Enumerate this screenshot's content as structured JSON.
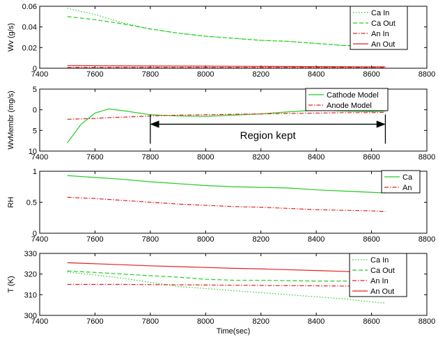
{
  "chart_data": [
    {
      "type": "line",
      "ylabel": "Wv (g/s)",
      "x": [
        7500,
        7600,
        7700,
        7800,
        7900,
        8000,
        8100,
        8200,
        8300,
        8400,
        8500,
        8600,
        8650
      ],
      "xlim": [
        7400,
        8800
      ],
      "xticks": [
        7400,
        7600,
        7800,
        8000,
        8200,
        8400,
        8600,
        8800
      ],
      "ylim": [
        0,
        0.06
      ],
      "yticks": [
        0,
        0.02,
        0.04,
        0.06
      ],
      "series": [
        {
          "name": "Ca In",
          "color": "#22cc22",
          "dash": "dotted",
          "values": [
            0.058,
            0.052,
            0.044,
            0.038,
            0.034,
            0.031,
            0.029,
            0.027,
            0.026,
            0.024,
            0.022,
            0.021,
            0.02
          ]
        },
        {
          "name": "Ca Out",
          "color": "#22cc22",
          "dash": "dashed",
          "values": [
            0.05,
            0.047,
            0.043,
            0.038,
            0.034,
            0.031,
            0.029,
            0.027,
            0.026,
            0.024,
            0.022,
            0.021,
            0.02
          ]
        },
        {
          "name": "An In",
          "color": "#e02020",
          "dash": "dashdot",
          "values": [
            0.0008,
            0.0008,
            0.0008,
            0.0008,
            0.0008,
            0.0008,
            0.0008,
            0.0008,
            0.0008,
            0.0008,
            0.0008,
            0.0008,
            0.0008
          ]
        },
        {
          "name": "An Out",
          "color": "#e02020",
          "dash": "solid",
          "values": [
            0.0025,
            0.0024,
            0.0023,
            0.0022,
            0.0021,
            0.002,
            0.0019,
            0.0018,
            0.0017,
            0.0016,
            0.0015,
            0.0014,
            0.0014
          ]
        }
      ]
    },
    {
      "type": "line",
      "ylabel": "WvMembr (mg/s)",
      "x": [
        7500,
        7550,
        7600,
        7650,
        7700,
        7800,
        7900,
        8000,
        8100,
        8200,
        8300,
        8400,
        8500,
        8600,
        8650
      ],
      "xlim": [
        7400,
        8800
      ],
      "xticks": [
        7400,
        7600,
        7800,
        8000,
        8200,
        8400,
        8600,
        8800
      ],
      "ylim": [
        -10,
        5
      ],
      "yticks": [
        {
          "value": -10,
          "label": "10"
        },
        {
          "value": -5,
          "label": "5"
        },
        0,
        5
      ],
      "series": [
        {
          "name": "Cathode Model",
          "color": "#22cc22",
          "dash": "solid",
          "values": [
            -8,
            -3.5,
            -0.8,
            0.2,
            -0.2,
            -1.2,
            -1.5,
            -1.6,
            -1.3,
            -1,
            -0.5,
            -0.1,
            -0.3,
            -0.4,
            -0.3
          ]
        },
        {
          "name": "Anode Model",
          "color": "#e02020",
          "dash": "dashdot",
          "values": [
            -2.3,
            -2.2,
            -2.1,
            -1.9,
            -1.8,
            -1.5,
            -1.3,
            -1.2,
            -1.1,
            -1,
            -0.9,
            -0.8,
            -0.7,
            -0.7,
            -0.6
          ]
        }
      ],
      "annotation": {
        "text": "Region kept",
        "x": [
          7800,
          8650
        ],
        "y": -3.5
      }
    },
    {
      "type": "line",
      "ylabel": "RH",
      "x": [
        7500,
        7600,
        7700,
        7800,
        7900,
        8000,
        8100,
        8200,
        8300,
        8400,
        8500,
        8600,
        8650
      ],
      "xlim": [
        7400,
        8800
      ],
      "xticks": [
        7400,
        7600,
        7800,
        8000,
        8200,
        8400,
        8600,
        8800
      ],
      "ylim": [
        0,
        1
      ],
      "yticks": [
        0,
        0.5,
        1
      ],
      "series": [
        {
          "name": "Ca",
          "color": "#22cc22",
          "dash": "solid",
          "values": [
            0.93,
            0.9,
            0.87,
            0.83,
            0.8,
            0.77,
            0.75,
            0.74,
            0.73,
            0.7,
            0.68,
            0.66,
            0.65
          ]
        },
        {
          "name": "An",
          "color": "#e02020",
          "dash": "dashdot",
          "values": [
            0.58,
            0.56,
            0.53,
            0.5,
            0.47,
            0.45,
            0.43,
            0.42,
            0.4,
            0.38,
            0.37,
            0.36,
            0.35
          ]
        }
      ]
    },
    {
      "type": "line",
      "ylabel": "T (K)",
      "xlabel": "Time(sec)",
      "x": [
        7500,
        7600,
        7700,
        7800,
        7900,
        8000,
        8100,
        8200,
        8300,
        8400,
        8500,
        8600,
        8650
      ],
      "xlim": [
        7400,
        8800
      ],
      "xticks": [
        7400,
        7600,
        7800,
        8000,
        8200,
        8400,
        8600,
        8800
      ],
      "ylim": [
        300,
        330
      ],
      "yticks": [
        300,
        310,
        320,
        330
      ],
      "series": [
        {
          "name": "Ca In",
          "color": "#22cc22",
          "dash": "dotted",
          "values": [
            321,
            319.5,
            318,
            316,
            314,
            313,
            312,
            311,
            310,
            309,
            308,
            306.5,
            306
          ]
        },
        {
          "name": "Ca Out",
          "color": "#22cc22",
          "dash": "dashed",
          "values": [
            321.5,
            320.8,
            320,
            319.2,
            318.5,
            317.5,
            317,
            317,
            316.8,
            316.6,
            316.6,
            316.8,
            317
          ]
        },
        {
          "name": "An In",
          "color": "#e02020",
          "dash": "dashdot",
          "values": [
            315,
            315,
            315,
            314.9,
            314.8,
            314.7,
            314.6,
            314.5,
            314.4,
            314.3,
            314.2,
            314.1,
            314
          ]
        },
        {
          "name": "An Out",
          "color": "#e02020",
          "dash": "solid",
          "values": [
            325.5,
            325,
            324.5,
            324,
            323.6,
            323.2,
            322.8,
            322.5,
            322.1,
            321.7,
            321.3,
            320.8,
            320.5
          ]
        }
      ]
    }
  ]
}
